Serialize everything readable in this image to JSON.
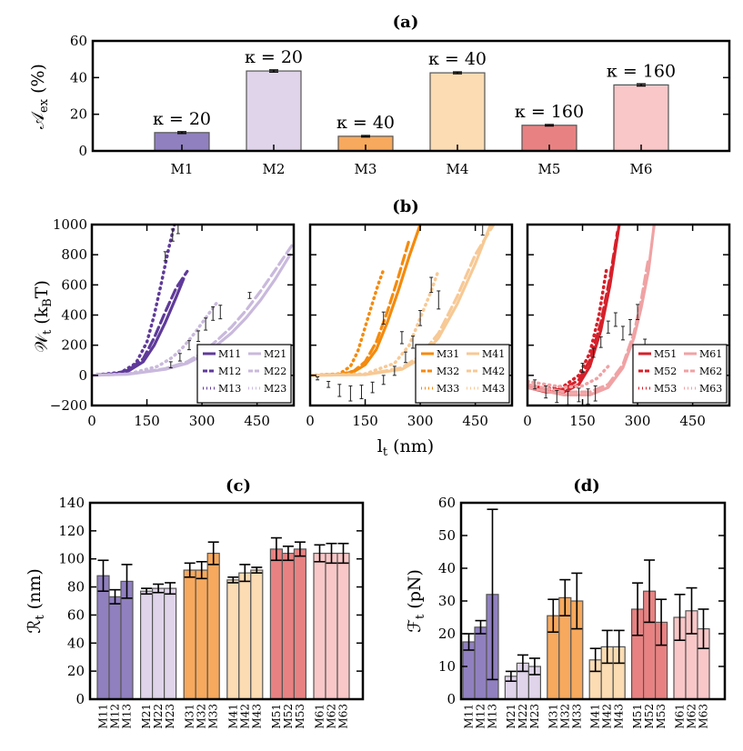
{
  "colors": {
    "M1": "#9080bf",
    "M2": "#dfd4ea",
    "M3": "#f7a95d",
    "M4": "#fbdcb3",
    "M5": "#e88282",
    "M6": "#f9c7c8",
    "M1_line": "#5f3a9a",
    "M2_line": "#c9b9dc",
    "M3_line": "#f58a0c",
    "M4_line": "#f7c995",
    "M5_line": "#d6202a",
    "M6_line": "#f0a2a4",
    "err": "#000000"
  },
  "chart_data": [
    {
      "id": "a",
      "type": "bar",
      "title": "(a)",
      "ylabel": "A_ex (%)",
      "categories": [
        "M1",
        "M2",
        "M3",
        "M4",
        "M5",
        "M6"
      ],
      "values": [
        10,
        43.6,
        8,
        42.6,
        14,
        36
      ],
      "errors": [
        0.5,
        0.6,
        0.4,
        0.5,
        0.4,
        0.6
      ],
      "bar_labels": [
        "κ = 20",
        "κ = 20",
        "κ = 40",
        "κ = 40",
        "κ = 160",
        "κ = 160"
      ],
      "ylim": [
        0,
        60
      ],
      "yticks": [
        "0",
        "20",
        "40",
        "60"
      ]
    },
    {
      "id": "b",
      "type": "line",
      "title": "(b)",
      "ylabel": "W_t (k_B T)",
      "xlabel": "l_t (nm)",
      "ylim": [
        -200,
        1000
      ],
      "xlim": [
        0,
        550
      ],
      "yticks": [
        "−200",
        "0",
        "200",
        "400",
        "600",
        "800",
        "1000"
      ],
      "xticks": [
        "0",
        "150",
        "300",
        "450"
      ],
      "panels": [
        {
          "legend": [
            "M11",
            "M12",
            "M13",
            "M21",
            "M22",
            "M23"
          ],
          "series": [
            {
              "name": "M11",
              "style": "solid",
              "color": "M1_line",
              "x": [
                0,
                60,
                100,
                140,
                170,
                200,
                230,
                250
              ],
              "y": [
                0,
                10,
                30,
                90,
                200,
                350,
                520,
                640
              ]
            },
            {
              "name": "M12",
              "style": "dash",
              "color": "M1_line",
              "x": [
                0,
                60,
                100,
                140,
                170,
                200,
                230,
                260
              ],
              "y": [
                0,
                10,
                35,
                110,
                250,
                420,
                580,
                690
              ]
            },
            {
              "name": "M13",
              "style": "dot",
              "color": "M1_line",
              "x": [
                0,
                80,
                120,
                150,
                170,
                190,
                210,
                225
              ],
              "y": [
                0,
                20,
                80,
                220,
                400,
                620,
                850,
                1000
              ]
            },
            {
              "name": "M21",
              "style": "solid",
              "color": "M2_line",
              "x": [
                0,
                100,
                200,
                260,
                300,
                340,
                380,
                420,
                460,
                500,
                540
              ],
              "y": [
                0,
                8,
                40,
                80,
                130,
                200,
                280,
                380,
                500,
                640,
                800
              ]
            },
            {
              "name": "M22",
              "style": "dash",
              "color": "M2_line",
              "x": [
                0,
                100,
                200,
                260,
                300,
                340,
                380,
                420,
                460,
                500,
                550
              ],
              "y": [
                0,
                8,
                45,
                90,
                150,
                230,
                320,
                430,
                560,
                700,
                880
              ]
            },
            {
              "name": "M23",
              "style": "dot",
              "color": "M2_line",
              "x": [
                0,
                100,
                180,
                220,
                250,
                280,
                310,
                340
              ],
              "y": [
                0,
                10,
                60,
                120,
                190,
                280,
                380,
                480
              ]
            }
          ],
          "points": [
            {
              "x": 200,
              "y": 790,
              "e": 30
            },
            {
              "x": 220,
              "y": 930,
              "e": 40
            },
            {
              "x": 235,
              "y": 980,
              "e": 40
            },
            {
              "x": 215,
              "y": 70,
              "e": 20
            },
            {
              "x": 240,
              "y": 120,
              "e": 25
            },
            {
              "x": 265,
              "y": 200,
              "e": 30
            },
            {
              "x": 290,
              "y": 260,
              "e": 35
            },
            {
              "x": 310,
              "y": 340,
              "e": 40
            },
            {
              "x": 330,
              "y": 410,
              "e": 45
            },
            {
              "x": 350,
              "y": 420,
              "e": 45
            },
            {
              "x": 430,
              "y": 530,
              "e": 20
            }
          ]
        },
        {
          "legend": [
            "M31",
            "M32",
            "M33",
            "M41",
            "M42",
            "M43"
          ],
          "series": [
            {
              "name": "M31",
              "style": "solid",
              "color": "M3_line",
              "x": [
                0,
                80,
                120,
                150,
                180,
                210,
                240,
                270,
                300
              ],
              "y": [
                0,
                5,
                25,
                70,
                170,
                350,
                560,
                790,
                1000
              ]
            },
            {
              "name": "M32",
              "style": "dash",
              "color": "M3_line",
              "x": [
                0,
                80,
                120,
                150,
                180,
                210,
                240,
                270
              ],
              "y": [
                0,
                5,
                30,
                90,
                220,
                420,
                650,
                900
              ]
            },
            {
              "name": "M33",
              "style": "dot",
              "color": "M3_line",
              "x": [
                0,
                80,
                110,
                130,
                150,
                170,
                185,
                200
              ],
              "y": [
                0,
                10,
                60,
                160,
                320,
                480,
                600,
                700
              ]
            },
            {
              "name": "M41",
              "style": "solid",
              "color": "M4_line",
              "x": [
                0,
                150,
                250,
                300,
                350,
                400,
                450,
                490
              ],
              "y": [
                0,
                5,
                40,
                110,
                250,
                470,
                740,
                990
              ]
            },
            {
              "name": "M42",
              "style": "dash",
              "color": "M4_line",
              "x": [
                0,
                150,
                250,
                300,
                350,
                400,
                450,
                500
              ],
              "y": [
                0,
                5,
                50,
                130,
                280,
                520,
                800,
                1000
              ]
            },
            {
              "name": "M43",
              "style": "dot",
              "color": "M4_line",
              "x": [
                0,
                150,
                230,
                270,
                300,
                330,
                350
              ],
              "y": [
                0,
                10,
                80,
                200,
                380,
                560,
                700
              ]
            }
          ],
          "points": [
            {
              "x": 20,
              "y": -20,
              "e": 10
            },
            {
              "x": 50,
              "y": -60,
              "e": 20
            },
            {
              "x": 80,
              "y": -100,
              "e": 40
            },
            {
              "x": 110,
              "y": -120,
              "e": 50
            },
            {
              "x": 140,
              "y": -110,
              "e": 45
            },
            {
              "x": 170,
              "y": -80,
              "e": 35
            },
            {
              "x": 200,
              "y": -30,
              "e": 30
            },
            {
              "x": 230,
              "y": 30,
              "e": 30
            },
            {
              "x": 260,
              "y": 120,
              "e": 35
            },
            {
              "x": 280,
              "y": 220,
              "e": 40
            },
            {
              "x": 300,
              "y": 380,
              "e": 50
            },
            {
              "x": 330,
              "y": 600,
              "e": 50
            },
            {
              "x": 350,
              "y": 500,
              "e": 60
            },
            {
              "x": 250,
              "y": 250,
              "e": 40
            },
            {
              "x": 200,
              "y": 380,
              "e": 40
            },
            {
              "x": 470,
              "y": 970,
              "e": 40
            }
          ]
        },
        {
          "legend": [
            "M51",
            "M52",
            "M53",
            "M61",
            "M62",
            "M63"
          ],
          "series": [
            {
              "name": "M51",
              "style": "solid",
              "color": "M5_line",
              "x": [
                0,
                50,
                100,
                140,
                170,
                200,
                225,
                250
              ],
              "y": [
                -80,
                -110,
                -110,
                -60,
                60,
                300,
                600,
                1000
              ]
            },
            {
              "name": "M52",
              "style": "dash",
              "color": "M5_line",
              "x": [
                0,
                50,
                100,
                140,
                170,
                200,
                225,
                245
              ],
              "y": [
                -70,
                -100,
                -90,
                -30,
                100,
                350,
                650,
                950
              ]
            },
            {
              "name": "M53",
              "style": "dot",
              "color": "M5_line",
              "x": [
                0,
                50,
                100,
                140,
                170,
                195,
                215
              ],
              "y": [
                -60,
                -90,
                -70,
                0,
                150,
                400,
                700
              ]
            },
            {
              "name": "M61",
              "style": "solid",
              "color": "M6_line",
              "x": [
                0,
                100,
                170,
                220,
                260,
                290,
                310,
                330,
                345
              ],
              "y": [
                -80,
                -130,
                -130,
                -80,
                50,
                250,
                450,
                700,
                1000
              ]
            },
            {
              "name": "M62",
              "style": "dash",
              "color": "M6_line",
              "x": [
                0,
                100,
                170,
                220,
                260,
                290,
                310,
                330
              ],
              "y": [
                -60,
                -110,
                -110,
                -60,
                70,
                280,
                500,
                780
              ]
            },
            {
              "name": "M63",
              "style": "dot",
              "color": "M6_line",
              "x": [
                0,
                100,
                150,
                190,
                220
              ],
              "y": [
                -40,
                -80,
                -70,
                -20,
                60
              ]
            }
          ],
          "points": [
            {
              "x": 20,
              "y": -60,
              "e": 30
            },
            {
              "x": 50,
              "y": -110,
              "e": 40
            },
            {
              "x": 80,
              "y": -140,
              "e": 40
            },
            {
              "x": 110,
              "y": -150,
              "e": 45
            },
            {
              "x": 140,
              "y": -130,
              "e": 45
            },
            {
              "x": 165,
              "y": -140,
              "e": 50
            },
            {
              "x": 185,
              "y": -120,
              "e": 50
            },
            {
              "x": 150,
              "y": 50,
              "e": 30
            },
            {
              "x": 180,
              "y": 150,
              "e": 30
            },
            {
              "x": 200,
              "y": 220,
              "e": 35
            },
            {
              "x": 220,
              "y": 320,
              "e": 40
            },
            {
              "x": 240,
              "y": 370,
              "e": 45
            },
            {
              "x": 260,
              "y": 280,
              "e": 45
            },
            {
              "x": 280,
              "y": 320,
              "e": 50
            },
            {
              "x": 300,
              "y": 420,
              "e": 50
            },
            {
              "x": 320,
              "y": 200,
              "e": 40
            }
          ]
        }
      ]
    },
    {
      "id": "c",
      "type": "bar",
      "title": "(c)",
      "ylabel": "R_t (nm)",
      "categories": [
        "M11",
        "M12",
        "M13",
        "M21",
        "M22",
        "M23",
        "M31",
        "M32",
        "M33",
        "M41",
        "M42",
        "M43",
        "M51",
        "M52",
        "M53",
        "M61",
        "M62",
        "M63"
      ],
      "values": [
        88,
        73,
        84,
        77,
        79,
        79,
        92,
        92,
        104,
        85,
        90,
        92,
        107,
        104,
        107,
        104,
        104,
        104
      ],
      "errors": [
        11,
        5,
        12,
        2,
        3,
        4,
        5,
        6,
        8,
        2,
        6,
        2,
        8,
        5,
        5,
        6,
        7,
        7
      ],
      "ylim": [
        0,
        140
      ],
      "yticks": [
        "0",
        "20",
        "40",
        "60",
        "80",
        "100",
        "120",
        "140"
      ]
    },
    {
      "id": "d",
      "type": "bar",
      "title": "(d)",
      "ylabel": "F_t (pN)",
      "categories": [
        "M11",
        "M12",
        "M13",
        "M21",
        "M22",
        "M23",
        "M31",
        "M32",
        "M33",
        "M41",
        "M42",
        "M43",
        "M51",
        "M52",
        "M53",
        "M61",
        "M62",
        "M63"
      ],
      "values": [
        17.5,
        22,
        32,
        7,
        11,
        10,
        25.5,
        31,
        30,
        12,
        16,
        16,
        27.5,
        33,
        23.5,
        25,
        27,
        21.5
      ],
      "errors": [
        2.5,
        2,
        26,
        1.5,
        2.5,
        2.5,
        5,
        5.5,
        8.5,
        3.5,
        5,
        5,
        8,
        9.5,
        7,
        7,
        7,
        6
      ],
      "ylim": [
        0,
        60
      ],
      "yticks": [
        "0",
        "10",
        "20",
        "30",
        "40",
        "50",
        "60"
      ]
    }
  ]
}
